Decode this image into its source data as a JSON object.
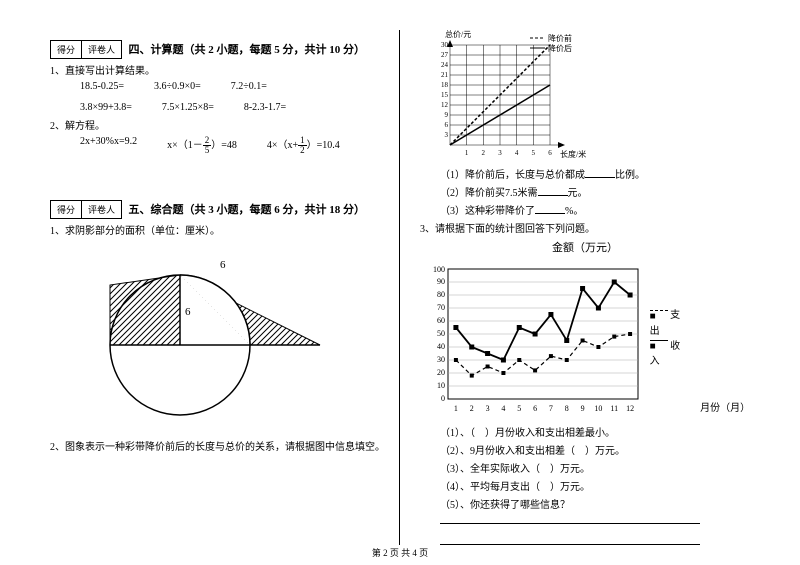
{
  "footer": "第 2 页 共 4 页",
  "scorebox": {
    "score": "得分",
    "reviewer": "评卷人"
  },
  "section4": {
    "title": "四、计算题（共 2 小题，每题 5 分，共计 10 分）",
    "q1": "1、直接写出计算结果。",
    "row1": [
      "18.5-0.25=",
      "3.6÷0.9×0=",
      "7.2÷0.1="
    ],
    "row2": [
      "3.8×99+3.8=",
      "7.5×1.25×8=",
      "8-2.3-1.7="
    ],
    "q2": "2、解方程。",
    "eq1": "2x+30%x=9.2",
    "eq2a": "x×（1－",
    "eq2b": "）=48",
    "eq3a": "4×（x+",
    "eq3b": "）=10.4"
  },
  "section5": {
    "title": "五、综合题（共 3 小题，每题 6 分，共计 18 分）",
    "q1": "1、求阴影部分的面积（单位：厘米）。",
    "fig_label": "6",
    "q2": "2、图象表示一种彩带降价前后的长度与总价的关系，请根据图中信息填空。"
  },
  "chart1": {
    "ylabel": "总价/元",
    "xlabel": "长度/米",
    "legend_before": "降价前",
    "legend_after": "降价后",
    "xticks": [
      "1",
      "2",
      "3",
      "4",
      "5",
      "6"
    ],
    "yticks": [
      "3",
      "6",
      "9",
      "12",
      "15",
      "18",
      "21",
      "24",
      "27",
      "30"
    ],
    "grid_color": "#000",
    "line_before": {
      "x1": 0,
      "y1": 0,
      "x2": 6,
      "y2": 30,
      "dash": "3,2"
    },
    "line_after": {
      "x1": 0,
      "y1": 0,
      "x2": 6,
      "y2": 18,
      "dash": "none"
    }
  },
  "q_after_chart1": {
    "a": "（1）降价前后，长度与总价都成",
    "a2": "比例。",
    "b": "（2）降价前买7.5米需",
    "b2": "元。",
    "c": "（3）这种彩带降价了",
    "c2": "%。"
  },
  "q3": "3、请根据下面的统计图回答下列问题。",
  "chart2": {
    "title": "金额（万元）",
    "xlabel": "月份（月）",
    "legend_out": "支出",
    "legend_in": "收入",
    "xticks": [
      "1",
      "2",
      "3",
      "4",
      "5",
      "6",
      "7",
      "8",
      "9",
      "10",
      "11",
      "12"
    ],
    "yticks": [
      "0",
      "10",
      "20",
      "30",
      "40",
      "50",
      "60",
      "70",
      "80",
      "90",
      "100"
    ],
    "income": [
      55,
      40,
      35,
      30,
      55,
      50,
      65,
      45,
      85,
      70,
      90,
      80
    ],
    "expense": [
      30,
      18,
      25,
      20,
      30,
      22,
      33,
      30,
      45,
      40,
      48,
      50
    ],
    "income_color": "#000",
    "expense_color": "#000"
  },
  "q_after_chart2": {
    "a": "（1）、（　）月份收入和支出相差最小。",
    "b": "（2）、9月份收入和支出相差（　）万元。",
    "c": "（3）、全年实际收入（　）万元。",
    "d": "（4）、平均每月支出（　）万元。",
    "e": "（5）、你还获得了哪些信息？"
  }
}
